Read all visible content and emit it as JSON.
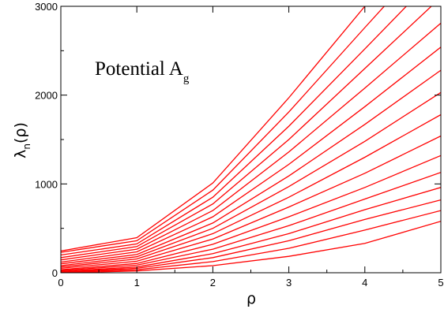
{
  "chart_data": {
    "type": "line",
    "title": "",
    "xlabel": "ρ",
    "ylabel": {
      "main": "λ",
      "subscript": "n",
      "suffix": "(ρ)"
    },
    "annotation": {
      "main": "Potential A",
      "subscript": "g"
    },
    "xlim": [
      0,
      5
    ],
    "ylim": [
      0,
      3000
    ],
    "x_ticks": [
      0,
      1,
      2,
      3,
      4,
      5
    ],
    "y_ticks": [
      0,
      1000,
      2000,
      3000
    ],
    "grid": false,
    "legend": "none",
    "color": "#ff0000",
    "series": [
      {
        "values": [
          [
            0,
            0
          ],
          [
            1,
            20
          ],
          [
            2,
            80
          ],
          [
            3,
            185
          ],
          [
            4,
            330
          ],
          [
            5,
            580
          ]
        ]
      },
      {
        "values": [
          [
            0,
            5
          ],
          [
            1,
            35
          ],
          [
            2,
            125
          ],
          [
            3,
            275
          ],
          [
            4,
            480
          ],
          [
            5,
            700
          ]
        ]
      },
      {
        "values": [
          [
            0,
            10
          ],
          [
            1,
            50
          ],
          [
            2,
            170
          ],
          [
            3,
            360
          ],
          [
            4,
            600
          ],
          [
            5,
            820
          ]
        ]
      },
      {
        "values": [
          [
            0,
            15
          ],
          [
            1,
            65
          ],
          [
            2,
            215
          ],
          [
            3,
            440
          ],
          [
            4,
            710
          ],
          [
            5,
            960
          ]
        ]
      },
      {
        "values": [
          [
            0,
            25
          ],
          [
            1,
            85
          ],
          [
            2,
            265
          ],
          [
            3,
            530
          ],
          [
            4,
            830
          ],
          [
            5,
            1130
          ]
        ]
      },
      {
        "values": [
          [
            0,
            35
          ],
          [
            1,
            105
          ],
          [
            2,
            320
          ],
          [
            3,
            630
          ],
          [
            4,
            960
          ],
          [
            5,
            1320
          ]
        ]
      },
      {
        "values": [
          [
            0,
            50
          ],
          [
            1,
            130
          ],
          [
            2,
            380
          ],
          [
            3,
            740
          ],
          [
            4,
            1120
          ],
          [
            5,
            1540
          ]
        ]
      },
      {
        "values": [
          [
            0,
            65
          ],
          [
            1,
            155
          ],
          [
            2,
            440
          ],
          [
            3,
            850
          ],
          [
            4,
            1300
          ],
          [
            5,
            1780
          ]
        ]
      },
      {
        "values": [
          [
            0,
            80
          ],
          [
            1,
            180
          ],
          [
            2,
            500
          ],
          [
            3,
            970
          ],
          [
            4,
            1480
          ],
          [
            5,
            2030
          ]
        ]
      },
      {
        "values": [
          [
            0,
            100
          ],
          [
            1,
            205
          ],
          [
            2,
            560
          ],
          [
            3,
            1090
          ],
          [
            4,
            1670
          ],
          [
            5,
            2280
          ]
        ]
      },
      {
        "values": [
          [
            0,
            120
          ],
          [
            1,
            235
          ],
          [
            2,
            630
          ],
          [
            3,
            1220
          ],
          [
            4,
            1870
          ],
          [
            5,
            2540
          ]
        ]
      },
      {
        "values": [
          [
            0,
            145
          ],
          [
            1,
            265
          ],
          [
            2,
            700
          ],
          [
            3,
            1360
          ],
          [
            4,
            2080
          ],
          [
            5,
            2810
          ]
        ]
      },
      {
        "values": [
          [
            0,
            170
          ],
          [
            1,
            295
          ],
          [
            2,
            775
          ],
          [
            3,
            1500
          ],
          [
            4,
            2300
          ],
          [
            5,
            3100
          ]
        ]
      },
      {
        "values": [
          [
            0,
            200
          ],
          [
            1,
            325
          ],
          [
            2,
            850
          ],
          [
            3,
            1650
          ],
          [
            4,
            2520
          ],
          [
            5,
            3400
          ]
        ]
      },
      {
        "values": [
          [
            0,
            230
          ],
          [
            1,
            360
          ],
          [
            2,
            930
          ],
          [
            3,
            1810
          ],
          [
            4,
            2760
          ],
          [
            5,
            3700
          ]
        ]
      },
      {
        "values": [
          [
            0,
            245
          ],
          [
            1,
            395
          ],
          [
            2,
            1010
          ],
          [
            3,
            1970
          ],
          [
            4,
            3000
          ],
          [
            5,
            4000
          ]
        ]
      }
    ]
  }
}
